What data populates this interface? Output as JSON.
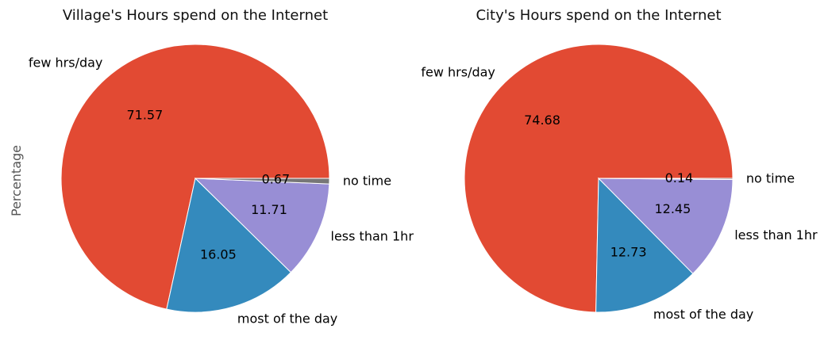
{
  "chart_data": [
    {
      "type": "pie",
      "title": "Village's Hours spend on the Internet",
      "ylabel": "Percentage",
      "slices": [
        {
          "label": "few hrs/day",
          "value": 71.57,
          "value_label": "71.57",
          "color": "#E24A33"
        },
        {
          "label": "most of the day",
          "value": 16.05,
          "value_label": "16.05",
          "color": "#348ABD"
        },
        {
          "label": "less than 1hr",
          "value": 11.71,
          "value_label": "11.71",
          "color": "#988ED5"
        },
        {
          "label": "no time",
          "value": 0.67,
          "value_label": "0.67",
          "color": "#777777"
        }
      ]
    },
    {
      "type": "pie",
      "title": "City's Hours spend on the Internet",
      "ylabel": "",
      "slices": [
        {
          "label": "few hrs/day",
          "value": 74.68,
          "value_label": "74.68",
          "color": "#E24A33"
        },
        {
          "label": "most of the day",
          "value": 12.73,
          "value_label": "12.73",
          "color": "#348ABD"
        },
        {
          "label": "less than 1hr",
          "value": 12.45,
          "value_label": "12.45",
          "color": "#988ED5"
        },
        {
          "label": "no time",
          "value": 0.14,
          "value_label": "0.14",
          "color": "#777777"
        }
      ]
    }
  ]
}
